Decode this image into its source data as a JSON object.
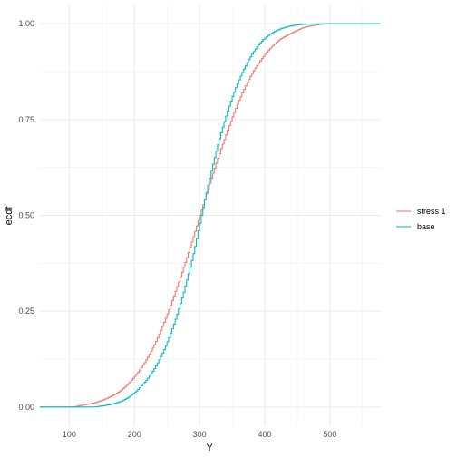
{
  "chart_data": {
    "type": "line",
    "title": "",
    "xlabel": "Y",
    "ylabel": "ecdf",
    "xlim": [
      55,
      578
    ],
    "ylim": [
      -0.05,
      1.05
    ],
    "x_ticks": [
      100,
      200,
      300,
      400,
      500
    ],
    "x_tick_labels": [
      "100",
      "200",
      "300",
      "400",
      "500"
    ],
    "y_ticks": [
      0,
      0.25,
      0.5,
      0.75,
      1
    ],
    "y_tick_labels": [
      "0.00",
      "0.25",
      "0.50",
      "0.75",
      "1.00"
    ],
    "grid": true,
    "legend_position": "right",
    "step": true,
    "series": [
      {
        "name": "stress 1",
        "color": "#F8766D",
        "x": [
          55,
          100,
          120,
          140,
          160,
          180,
          200,
          220,
          240,
          260,
          280,
          300,
          320,
          340,
          360,
          380,
          400,
          420,
          440,
          460,
          480,
          500,
          578
        ],
        "y": [
          0.0,
          0.0,
          0.005,
          0.012,
          0.025,
          0.045,
          0.08,
          0.13,
          0.2,
          0.29,
          0.39,
          0.5,
          0.61,
          0.71,
          0.8,
          0.87,
          0.92,
          0.955,
          0.975,
          0.99,
          0.997,
          1.0,
          1.0
        ]
      },
      {
        "name": "base",
        "color": "#00BFC4",
        "x": [
          55,
          130,
          150,
          170,
          190,
          210,
          230,
          250,
          270,
          290,
          300,
          310,
          330,
          350,
          370,
          390,
          410,
          430,
          450,
          470,
          500,
          578
        ],
        "y": [
          0.0,
          0.0,
          0.003,
          0.01,
          0.025,
          0.055,
          0.1,
          0.17,
          0.27,
          0.4,
          0.48,
          0.56,
          0.7,
          0.81,
          0.89,
          0.945,
          0.975,
          0.99,
          0.997,
          0.999,
          1.0,
          1.0
        ]
      }
    ]
  }
}
